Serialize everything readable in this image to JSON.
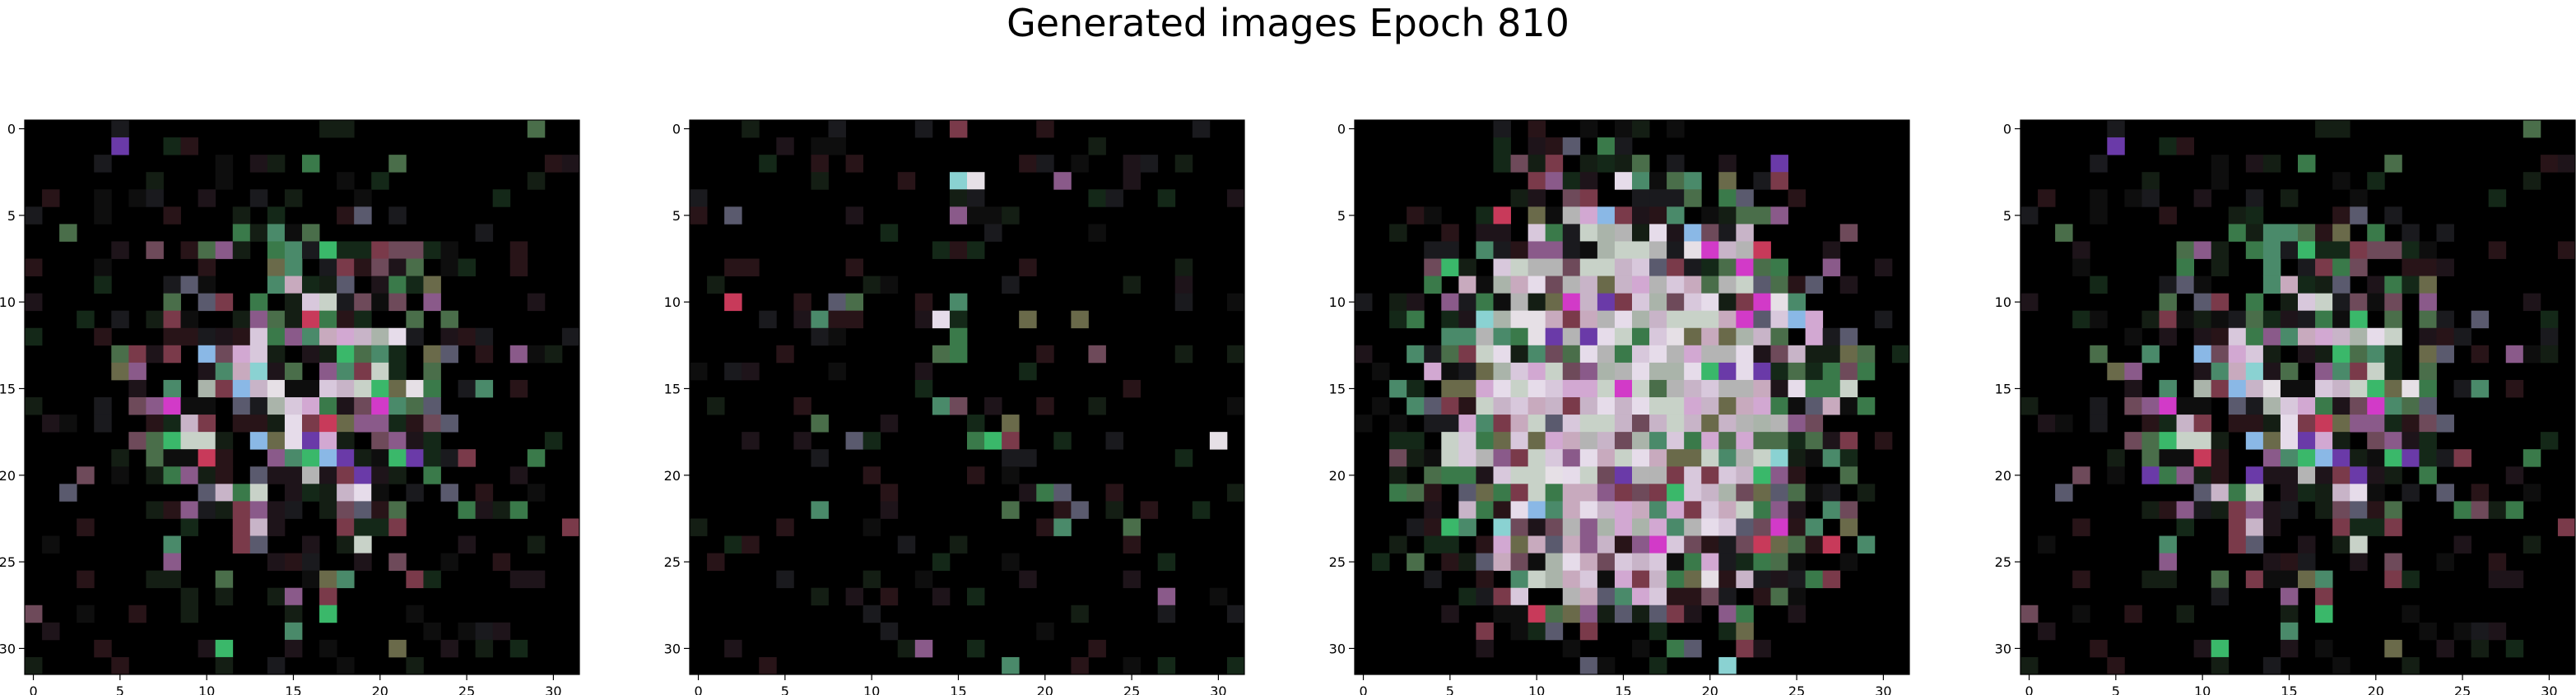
{
  "figure": {
    "title": "Generated images Epoch 810"
  },
  "chart_data": [
    {
      "type": "heatmap",
      "image": "generated-sample-1",
      "x_ticks": [
        0,
        5,
        10,
        15,
        20,
        25,
        30
      ],
      "y_ticks": [
        0,
        5,
        10,
        15,
        20,
        25,
        30
      ],
      "xlim": [
        -0.5,
        31.5
      ],
      "ylim": [
        31.5,
        -0.5
      ],
      "grid": false,
      "size": [
        32,
        32
      ],
      "seed": 11,
      "pattern": "ring",
      "density": 0.95
    },
    {
      "type": "heatmap",
      "image": "generated-sample-2",
      "x_ticks": [
        0,
        5,
        10,
        15,
        20,
        25,
        30
      ],
      "y_ticks": [
        0,
        5,
        10,
        15,
        20,
        25,
        30
      ],
      "xlim": [
        -0.5,
        31.5
      ],
      "ylim": [
        31.5,
        -0.5
      ],
      "grid": false,
      "size": [
        32,
        32
      ],
      "seed": 29,
      "pattern": "sparse",
      "density": 0.35
    },
    {
      "type": "heatmap",
      "image": "generated-sample-3",
      "x_ticks": [
        0,
        5,
        10,
        15,
        20,
        25,
        30
      ],
      "y_ticks": [
        0,
        5,
        10,
        15,
        20,
        25,
        30
      ],
      "xlim": [
        -0.5,
        31.5
      ],
      "ylim": [
        31.5,
        -0.5
      ],
      "grid": false,
      "size": [
        32,
        32
      ],
      "seed": 47,
      "pattern": "dense",
      "density": 1.25
    },
    {
      "type": "heatmap",
      "image": "generated-sample-4",
      "x_ticks": [
        0,
        5,
        10,
        15,
        20,
        25,
        30
      ],
      "y_ticks": [
        0,
        5,
        10,
        15,
        20,
        25,
        30
      ],
      "xlim": [
        -0.5,
        31.5
      ],
      "ylim": [
        31.5,
        -0.5
      ],
      "grid": false,
      "size": [
        32,
        32
      ],
      "seed": 11,
      "pattern": "ring",
      "density": 1.0
    }
  ],
  "palette": {
    "background": "#000000",
    "light": [
      "#c8b4c8",
      "#d2a8d2",
      "#b4b4b4",
      "#c8d2c8",
      "#d8c8dc",
      "#aab4aa",
      "#c8aabe",
      "#e6dcea"
    ],
    "mid": [
      "#6e4a5a",
      "#4a6e4a",
      "#5a5a6e",
      "#7a3a4a",
      "#3a7a4a",
      "#6a6a4a",
      "#8a5a8a",
      "#4a8a6a"
    ],
    "accent": [
      "#8ad2d2",
      "#6a3aa8",
      "#c83a5a",
      "#3ab86a",
      "#d23ac8",
      "#8ab8e6",
      "#e6e0e6"
    ],
    "dark": [
      "#1e141a",
      "#141e14",
      "#1a1a1e",
      "#281418",
      "#142818",
      "#0e0e0e"
    ]
  }
}
